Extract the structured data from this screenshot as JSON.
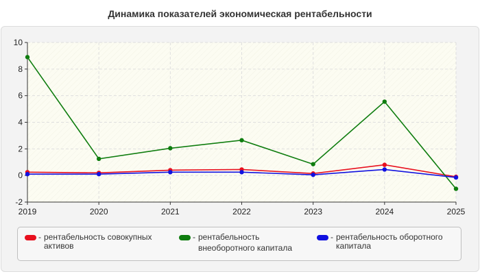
{
  "title": "Динамика показателей экономическая рентабельности",
  "chart_data": {
    "type": "line",
    "categories": [
      "2019",
      "2020",
      "2021",
      "2022",
      "2023",
      "2024",
      "2025"
    ],
    "ylim": [
      -2,
      10
    ],
    "yticks": [
      "-2",
      "0",
      "2",
      "4",
      "6",
      "8",
      "10"
    ],
    "grid": true,
    "legend_position": "bottom",
    "series": [
      {
        "name": "рентабельность совокупных активов",
        "color": "#e8101e",
        "values": [
          0.25,
          0.2,
          0.4,
          0.45,
          0.15,
          0.8,
          -0.1
        ]
      },
      {
        "name": "рентабельность внеоборотного капитала",
        "color": "#0f7d0f",
        "values": [
          8.9,
          1.25,
          2.05,
          2.65,
          0.85,
          5.55,
          -1.0
        ]
      },
      {
        "name": "рентабельность оборотного капитала",
        "color": "#1010e0",
        "values": [
          0.1,
          0.1,
          0.25,
          0.25,
          0.05,
          0.45,
          -0.15
        ]
      }
    ]
  },
  "legend": {
    "dash": "-",
    "items": [
      {
        "line1": "рентабельность совокупных",
        "line2": "активов",
        "color": "#e8101e"
      },
      {
        "line1": "рентабельность",
        "line2": "внеоборотного капитала",
        "color": "#0f7d0f"
      },
      {
        "line1": "рентабельность оборотного",
        "line2": "капитала",
        "color": "#1010e0"
      }
    ]
  }
}
